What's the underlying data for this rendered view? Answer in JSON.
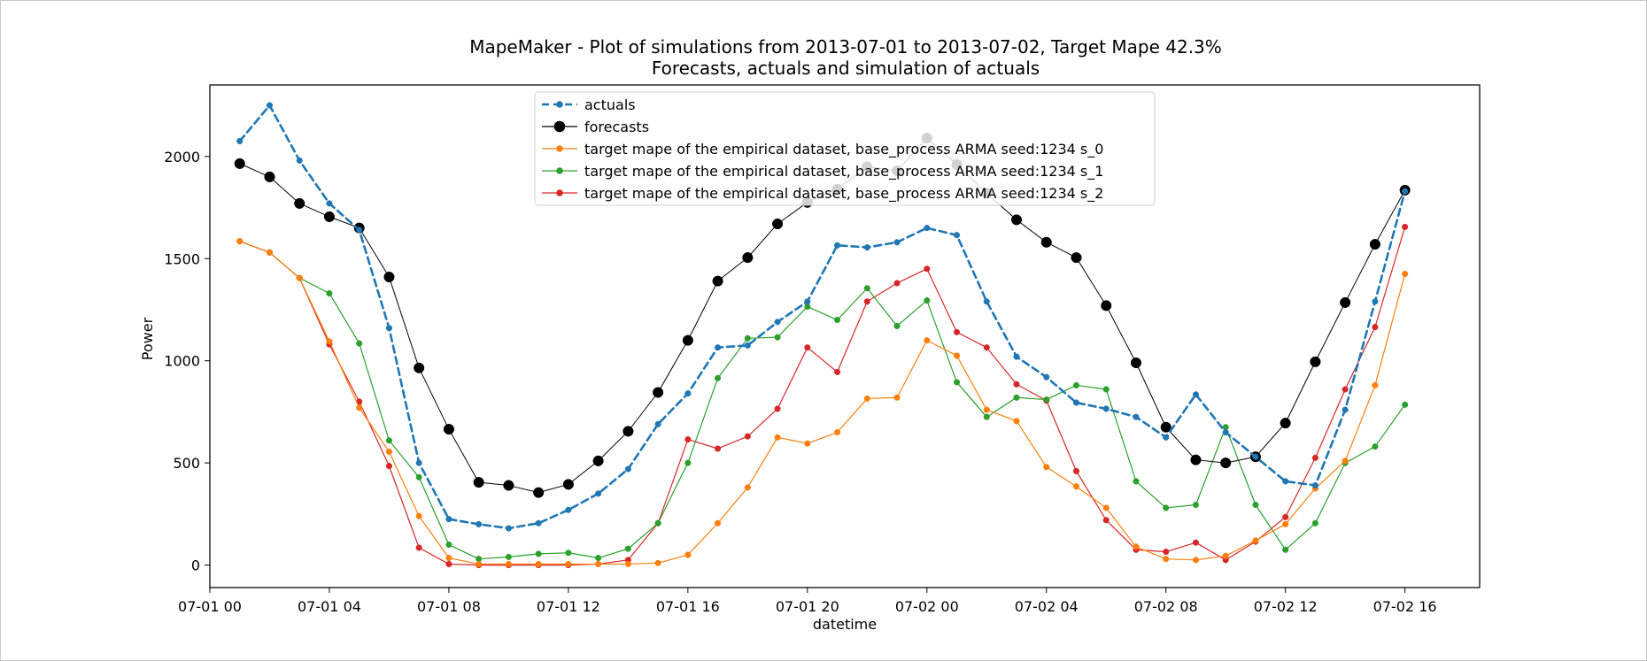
{
  "chart_data": {
    "type": "line",
    "title": "MapeMaker - Plot of simulations from 2013-07-01 to 2013-07-02, Target Mape 42.3%",
    "subtitle": "Forecasts, actuals and simulation of actuals",
    "xlabel": "datetime",
    "ylabel": "Power",
    "xlim": [
      0,
      42.5
    ],
    "ylim": [
      -110,
      2350
    ],
    "x_ticks": [
      {
        "value": 0,
        "label": "07-01 00"
      },
      {
        "value": 4,
        "label": "07-01 04"
      },
      {
        "value": 8,
        "label": "07-01 08"
      },
      {
        "value": 12,
        "label": "07-01 12"
      },
      {
        "value": 16,
        "label": "07-01 16"
      },
      {
        "value": 20,
        "label": "07-01 20"
      },
      {
        "value": 24,
        "label": "07-02 00"
      },
      {
        "value": 28,
        "label": "07-02 04"
      },
      {
        "value": 32,
        "label": "07-02 08"
      },
      {
        "value": 36,
        "label": "07-02 12"
      },
      {
        "value": 40,
        "label": "07-02 16"
      }
    ],
    "y_ticks": [
      0,
      500,
      1000,
      1500,
      2000
    ],
    "grid": false,
    "legend_position": "top-center",
    "x": [
      1,
      2,
      3,
      4,
      5,
      6,
      7,
      8,
      9,
      10,
      11,
      12,
      13,
      14,
      15,
      16,
      17,
      18,
      19,
      20,
      21,
      22,
      23,
      24,
      25,
      26,
      27,
      28,
      29,
      30,
      31,
      32,
      33,
      34,
      35,
      36,
      37,
      38,
      39,
      40
    ],
    "series": [
      {
        "name": "actuals",
        "color": "#1f77b4",
        "style": "dashed",
        "marker": "small",
        "values": [
          2075,
          2250,
          1980,
          1770,
          1640,
          1160,
          500,
          225,
          200,
          180,
          205,
          270,
          350,
          470,
          690,
          840,
          1065,
          1075,
          1190,
          1290,
          1565,
          1555,
          1580,
          1650,
          1615,
          1290,
          1020,
          920,
          795,
          765,
          725,
          625,
          835,
          650,
          530,
          410,
          390,
          760,
          1290,
          1830
        ]
      },
      {
        "name": "forecasts",
        "color": "#000000",
        "style": "solid",
        "marker": "large",
        "values": [
          1965,
          1900,
          1770,
          1705,
          1650,
          1410,
          965,
          665,
          405,
          390,
          355,
          395,
          510,
          655,
          845,
          1100,
          1390,
          1505,
          1670,
          1775,
          1840,
          1950,
          1930,
          2090,
          1960,
          1820,
          1690,
          1580,
          1505,
          1270,
          990,
          675,
          515,
          500,
          530,
          695,
          995,
          1285,
          1570,
          1835
        ]
      },
      {
        "name": "target mape  of the empirical dataset, base_process ARMA  seed:1234 s_0",
        "color": "#ff7f0e",
        "style": "solid",
        "marker": "small",
        "values": [
          1585,
          1530,
          1405,
          1095,
          770,
          555,
          240,
          35,
          5,
          5,
          5,
          5,
          5,
          5,
          10,
          50,
          205,
          380,
          625,
          595,
          650,
          815,
          820,
          1100,
          1025,
          760,
          705,
          480,
          385,
          280,
          90,
          30,
          25,
          45,
          120,
          200,
          375,
          510,
          880,
          1425
        ]
      },
      {
        "name": "target mape  of the empirical dataset, base_process ARMA  seed:1234 s_1",
        "color": "#2ca02c",
        "style": "solid",
        "marker": "small",
        "values": [
          1585,
          1530,
          1405,
          1330,
          1085,
          610,
          430,
          100,
          30,
          40,
          55,
          60,
          35,
          80,
          205,
          500,
          915,
          1110,
          1115,
          1265,
          1200,
          1355,
          1170,
          1295,
          895,
          725,
          820,
          810,
          880,
          860,
          410,
          280,
          295,
          675,
          295,
          75,
          205,
          500,
          580,
          785
        ]
      },
      {
        "name": "target mape  of the empirical dataset, base_process ARMA  seed:1234 s_2",
        "color": "#d62728",
        "style": "solid",
        "marker": "small",
        "values": [
          1585,
          1530,
          1405,
          1080,
          800,
          485,
          85,
          5,
          0,
          0,
          0,
          0,
          5,
          25,
          205,
          615,
          570,
          630,
          765,
          1065,
          945,
          1290,
          1380,
          1450,
          1140,
          1065,
          885,
          805,
          460,
          220,
          75,
          65,
          110,
          25,
          115,
          235,
          525,
          860,
          1165,
          1655
        ]
      }
    ]
  }
}
